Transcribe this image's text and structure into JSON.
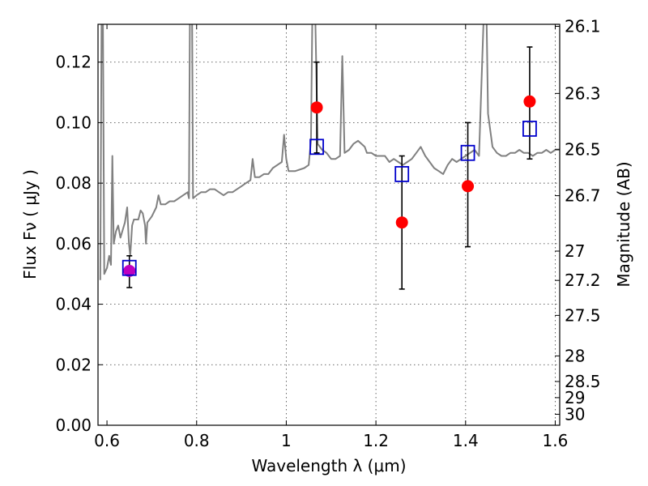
{
  "chart_data": {
    "type": "scatter",
    "title": "",
    "xlabel": "Wavelength  λ (μm)",
    "ylabel": "Flux  Fν  ( μJy )",
    "ylabel_right": "Magnitude (AB)",
    "xlim": [
      0.58,
      1.61
    ],
    "ylim": [
      0.0,
      0.1325
    ],
    "grid": true,
    "x_ticks": [
      0.6,
      0.8,
      1.0,
      1.2,
      1.4,
      1.6
    ],
    "x_tick_labels": [
      "0.6",
      "0.8",
      "1",
      "1.2",
      "1.4",
      "1.6"
    ],
    "y_ticks": [
      0.0,
      0.02,
      0.04,
      0.06,
      0.08,
      0.1,
      0.12
    ],
    "y_tick_labels": [
      "0.00",
      "0.02",
      "0.04",
      "0.06",
      "0.08",
      "0.10",
      "0.12"
    ],
    "right_ticks": [
      {
        "value": 26.1,
        "label": "26.1"
      },
      {
        "value": 26.3,
        "label": "26.3"
      },
      {
        "value": 26.5,
        "label": "26.5"
      },
      {
        "value": 26.7,
        "label": "26.7"
      },
      {
        "value": 27.0,
        "label": "27"
      },
      {
        "value": 27.2,
        "label": "27.2"
      },
      {
        "value": 27.5,
        "label": "27.5"
      },
      {
        "value": 28.0,
        "label": "28"
      },
      {
        "value": 28.5,
        "label": "28.5"
      },
      {
        "value": 29.0,
        "label": "29"
      },
      {
        "value": 30.0,
        "label": "30"
      }
    ],
    "series": [
      {
        "name": "model spectrum",
        "kind": "line",
        "color": "#808080",
        "points": [
          [
            0.585,
            0.048
          ],
          [
            0.588,
            0.133
          ],
          [
            0.591,
            0.133
          ],
          [
            0.594,
            0.05
          ],
          [
            0.6,
            0.052
          ],
          [
            0.605,
            0.056
          ],
          [
            0.609,
            0.053
          ],
          [
            0.612,
            0.089
          ],
          [
            0.615,
            0.06
          ],
          [
            0.62,
            0.064
          ],
          [
            0.625,
            0.066
          ],
          [
            0.63,
            0.062
          ],
          [
            0.64,
            0.067
          ],
          [
            0.645,
            0.072
          ],
          [
            0.649,
            0.06
          ],
          [
            0.652,
            0.056
          ],
          [
            0.656,
            0.066
          ],
          [
            0.66,
            0.068
          ],
          [
            0.67,
            0.068
          ],
          [
            0.675,
            0.071
          ],
          [
            0.68,
            0.07
          ],
          [
            0.685,
            0.066
          ],
          [
            0.687,
            0.06
          ],
          [
            0.69,
            0.067
          ],
          [
            0.7,
            0.069
          ],
          [
            0.71,
            0.072
          ],
          [
            0.715,
            0.076
          ],
          [
            0.72,
            0.073
          ],
          [
            0.73,
            0.073
          ],
          [
            0.74,
            0.074
          ],
          [
            0.75,
            0.074
          ],
          [
            0.76,
            0.075
          ],
          [
            0.77,
            0.076
          ],
          [
            0.78,
            0.077
          ],
          [
            0.783,
            0.075
          ],
          [
            0.785,
            0.133
          ],
          [
            0.79,
            0.133
          ],
          [
            0.792,
            0.075
          ],
          [
            0.8,
            0.076
          ],
          [
            0.81,
            0.077
          ],
          [
            0.82,
            0.077
          ],
          [
            0.83,
            0.078
          ],
          [
            0.84,
            0.078
          ],
          [
            0.85,
            0.077
          ],
          [
            0.86,
            0.076
          ],
          [
            0.87,
            0.077
          ],
          [
            0.88,
            0.077
          ],
          [
            0.89,
            0.078
          ],
          [
            0.9,
            0.079
          ],
          [
            0.91,
            0.08
          ],
          [
            0.92,
            0.081
          ],
          [
            0.925,
            0.088
          ],
          [
            0.93,
            0.082
          ],
          [
            0.94,
            0.082
          ],
          [
            0.95,
            0.083
          ],
          [
            0.96,
            0.083
          ],
          [
            0.97,
            0.085
          ],
          [
            0.98,
            0.086
          ],
          [
            0.99,
            0.087
          ],
          [
            0.995,
            0.096
          ],
          [
            1.0,
            0.088
          ],
          [
            1.005,
            0.084
          ],
          [
            1.02,
            0.084
          ],
          [
            1.04,
            0.085
          ],
          [
            1.05,
            0.086
          ],
          [
            1.055,
            0.094
          ],
          [
            1.058,
            0.133
          ],
          [
            1.065,
            0.133
          ],
          [
            1.07,
            0.093
          ],
          [
            1.08,
            0.091
          ],
          [
            1.09,
            0.09
          ],
          [
            1.1,
            0.088
          ],
          [
            1.11,
            0.088
          ],
          [
            1.12,
            0.089
          ],
          [
            1.125,
            0.122
          ],
          [
            1.13,
            0.09
          ],
          [
            1.14,
            0.091
          ],
          [
            1.15,
            0.093
          ],
          [
            1.16,
            0.094
          ],
          [
            1.175,
            0.092
          ],
          [
            1.18,
            0.09
          ],
          [
            1.19,
            0.09
          ],
          [
            1.2,
            0.089
          ],
          [
            1.21,
            0.089
          ],
          [
            1.22,
            0.089
          ],
          [
            1.23,
            0.087
          ],
          [
            1.24,
            0.088
          ],
          [
            1.25,
            0.087
          ],
          [
            1.26,
            0.086
          ],
          [
            1.27,
            0.087
          ],
          [
            1.28,
            0.088
          ],
          [
            1.29,
            0.09
          ],
          [
            1.3,
            0.092
          ],
          [
            1.31,
            0.089
          ],
          [
            1.32,
            0.087
          ],
          [
            1.33,
            0.085
          ],
          [
            1.34,
            0.084
          ],
          [
            1.35,
            0.083
          ],
          [
            1.36,
            0.086
          ],
          [
            1.37,
            0.088
          ],
          [
            1.38,
            0.087
          ],
          [
            1.39,
            0.088
          ],
          [
            1.4,
            0.089
          ],
          [
            1.41,
            0.09
          ],
          [
            1.42,
            0.091
          ],
          [
            1.43,
            0.089
          ],
          [
            1.44,
            0.133
          ],
          [
            1.447,
            0.133
          ],
          [
            1.45,
            0.103
          ],
          [
            1.46,
            0.092
          ],
          [
            1.47,
            0.09
          ],
          [
            1.48,
            0.089
          ],
          [
            1.49,
            0.089
          ],
          [
            1.5,
            0.09
          ],
          [
            1.51,
            0.09
          ],
          [
            1.52,
            0.091
          ],
          [
            1.53,
            0.09
          ],
          [
            1.54,
            0.09
          ],
          [
            1.55,
            0.089
          ],
          [
            1.56,
            0.09
          ],
          [
            1.57,
            0.09
          ],
          [
            1.58,
            0.091
          ],
          [
            1.59,
            0.09
          ],
          [
            1.6,
            0.091
          ],
          [
            1.61,
            0.091
          ]
        ]
      },
      {
        "name": "observed photometry",
        "kind": "errorbar",
        "marker": "circle",
        "color": "#ff0000",
        "points": [
          {
            "x": 1.068,
            "y": 0.105,
            "yerr_low": 0.09,
            "yerr_high": 0.12
          },
          {
            "x": 1.258,
            "y": 0.067,
            "yerr_low": 0.045,
            "yerr_high": 0.089
          },
          {
            "x": 1.405,
            "y": 0.079,
            "yerr_low": 0.059,
            "yerr_high": 0.1
          },
          {
            "x": 1.543,
            "y": 0.107,
            "yerr_low": 0.088,
            "yerr_high": 0.125
          }
        ]
      },
      {
        "name": "optical photometry",
        "kind": "errorbar",
        "marker": "circle",
        "color": "#bf00bf",
        "points": [
          {
            "x": 0.65,
            "y": 0.051,
            "yerr_low": 0.0455,
            "yerr_high": 0.056
          }
        ]
      },
      {
        "name": "model band fluxes",
        "kind": "scatter",
        "marker": "square",
        "color": "#0000cc",
        "points": [
          {
            "x": 0.65,
            "y": 0.052
          },
          {
            "x": 1.068,
            "y": 0.092
          },
          {
            "x": 1.258,
            "y": 0.083
          },
          {
            "x": 1.405,
            "y": 0.09
          },
          {
            "x": 1.543,
            "y": 0.098
          }
        ]
      }
    ]
  }
}
